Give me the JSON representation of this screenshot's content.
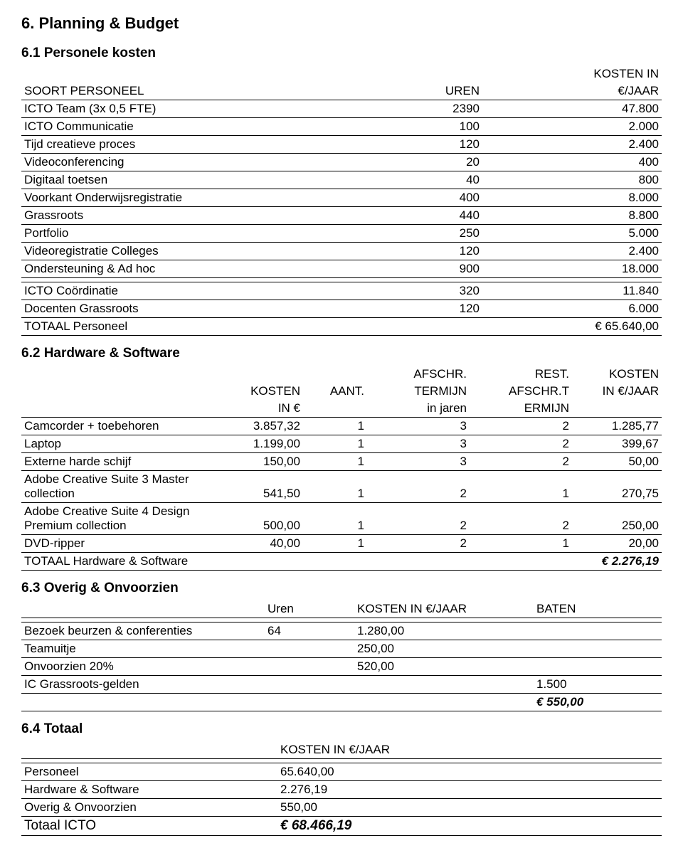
{
  "title": "6. Planning & Budget",
  "s61": {
    "heading": "6.1 Personele kosten",
    "cols": {
      "c1": "SOORT PERSONEEL",
      "c2": "UREN",
      "c3a": "KOSTEN IN",
      "c3b": "€/JAAR"
    },
    "rows": [
      {
        "label": "ICTO Team (3x 0,5 FTE)",
        "uren": "2390",
        "kosten": "47.800"
      },
      {
        "label": "ICTO Communicatie",
        "uren": "100",
        "kosten": "2.000"
      },
      {
        "label": "Tijd creatieve proces",
        "uren": "120",
        "kosten": "2.400"
      },
      {
        "label": "Videoconferencing",
        "uren": "20",
        "kosten": "400"
      },
      {
        "label": "Digitaal toetsen",
        "uren": "40",
        "kosten": "800"
      },
      {
        "label": "Voorkant Onderwijsregistratie",
        "uren": "400",
        "kosten": "8.000"
      },
      {
        "label": "Grassroots",
        "uren": "440",
        "kosten": "8.800"
      },
      {
        "label": "Portfolio",
        "uren": "250",
        "kosten": "5.000"
      },
      {
        "label": "Videoregistratie Colleges",
        "uren": "120",
        "kosten": "2.400"
      },
      {
        "label": "Ondersteuning & Ad hoc",
        "uren": "900",
        "kosten": "18.000"
      }
    ],
    "extra": [
      {
        "label": "ICTO Coördinatie",
        "uren": "320",
        "kosten": "11.840"
      },
      {
        "label": "Docenten Grassroots",
        "uren": "120",
        "kosten": "6.000"
      }
    ],
    "total": {
      "label": "TOTAAL Personeel",
      "value": "€ 65.640,00"
    }
  },
  "s62": {
    "heading": "6.2 Hardware & Software",
    "cols": {
      "c2a": "KOSTEN",
      "c2b": "IN €",
      "c3": "AANT.",
      "c4a": "AFSCHR.",
      "c4b": "TERMIJN",
      "c4c": "in jaren",
      "c5a": "REST.",
      "c5b": "AFSCHR.T",
      "c5c": "ERMIJN",
      "c6a": "KOSTEN",
      "c6b": "IN €/JAAR"
    },
    "rows": [
      {
        "label": "Camcorder + toebehoren",
        "kin": "3.857,32",
        "aant": "1",
        "term": "3",
        "rest": "2",
        "kj": "1.285,77"
      },
      {
        "label": "Laptop",
        "kin": "1.199,00",
        "aant": "1",
        "term": "3",
        "rest": "2",
        "kj": "399,67"
      },
      {
        "label": "Externe harde schijf",
        "kin": "150,00",
        "aant": "1",
        "term": "3",
        "rest": "2",
        "kj": "50,00"
      },
      {
        "label": "Adobe Creative Suite 3 Master collection",
        "kin": "541,50",
        "aant": "1",
        "term": "2",
        "rest": "1",
        "kj": "270,75"
      },
      {
        "label": "Adobe Creative Suite 4 Design Premium collection",
        "kin": "500,00",
        "aant": "1",
        "term": "2",
        "rest": "2",
        "kj": "250,00"
      },
      {
        "label": "DVD-ripper",
        "kin": "40,00",
        "aant": "1",
        "term": "2",
        "rest": "1",
        "kj": "20,00"
      }
    ],
    "total": {
      "label": "TOTAAL Hardware & Software",
      "value": "€ 2.276,19"
    }
  },
  "s63": {
    "heading": "6.3 Overig & Onvoorzien",
    "cols": {
      "c2": "Uren",
      "c3": "KOSTEN IN €/JAAR",
      "c4": "BATEN"
    },
    "rows": [
      {
        "label": "Bezoek beurzen & conferenties",
        "uren": "64",
        "kosten": "1.280,00",
        "baten": ""
      },
      {
        "label": "Teamuitje",
        "uren": "",
        "kosten": "250,00",
        "baten": ""
      },
      {
        "label": "Onvoorzien 20%",
        "uren": "",
        "kosten": "520,00",
        "baten": ""
      },
      {
        "label": "IC Grassroots-gelden",
        "uren": "",
        "kosten": "",
        "baten": "1.500"
      }
    ],
    "total": {
      "value": "€ 550,00"
    }
  },
  "s64": {
    "heading": "6.4 Totaal",
    "col": "KOSTEN IN €/JAAR",
    "rows": [
      {
        "label": "Personeel",
        "val": "65.640,00"
      },
      {
        "label": "Hardware & Software",
        "val": "2.276,19"
      },
      {
        "label": "Overig & Onvoorzien",
        "val": "550,00"
      }
    ],
    "total": {
      "label": "Totaal ICTO",
      "value": "€ 68.466,19"
    }
  }
}
